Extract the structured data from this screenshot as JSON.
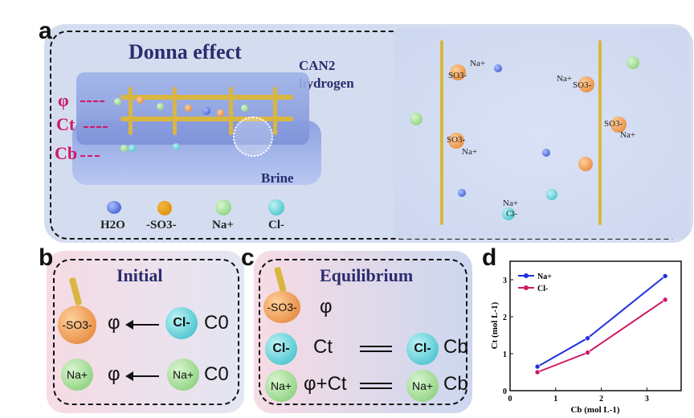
{
  "panel_labels": {
    "a": "a",
    "b": "b",
    "c": "c",
    "d": "d"
  },
  "panel_a": {
    "title": "Donna effect",
    "material_line1": "CAN2",
    "material_line2": "hydrogen",
    "brine": "Brine",
    "left_labels": {
      "phi": "φ",
      "ct": "Ct",
      "cb": "Cb"
    },
    "legend": [
      {
        "label": "H2O",
        "icon": "water-molecule"
      },
      {
        "label": "-SO3-",
        "icon": "orange-sphere"
      },
      {
        "label": "Na+",
        "icon": "green-sphere"
      },
      {
        "label": "Cl-",
        "icon": "cyan-sphere"
      }
    ],
    "inset_ions": [
      "Na+",
      "SO3-",
      "Na+",
      "SO3-",
      "SO3-",
      "Na+",
      "SO3-",
      "Na+",
      "Na+",
      "Cl-"
    ]
  },
  "panel_b": {
    "title": "Initial",
    "row1": {
      "left": "-SO3-",
      "mid": "φ",
      "right": "Cl-",
      "conc": "C0"
    },
    "row2": {
      "left": "Na+",
      "mid": "φ",
      "right": "Na+",
      "conc": "C0"
    }
  },
  "panel_c": {
    "title": "Equilibrium",
    "row1": {
      "left": "-SO3-",
      "mid": "φ"
    },
    "row2": {
      "left": "Cl-",
      "mid": "Ct",
      "right": "Cl-",
      "conc": "Cb"
    },
    "row3": {
      "left": "Na+",
      "mid": "φ+Ct",
      "right": "Na+",
      "conc": "Cb"
    }
  },
  "chart_data": {
    "type": "line",
    "xlabel": "Cb (mol L-1)",
    "ylabel": "Ct (mol L-1)",
    "xlim": [
      0,
      3.75
    ],
    "ylim": [
      0,
      3.5
    ],
    "xticks": [
      "0",
      "1",
      "2",
      "3"
    ],
    "yticks": [
      "0",
      "1",
      "2",
      "3"
    ],
    "grid": false,
    "legend_position": "top-left",
    "series": [
      {
        "name": "Na+",
        "color": "#1f2fe0",
        "x": [
          0.6,
          1.7,
          3.4
        ],
        "y": [
          0.65,
          1.42,
          3.1
        ]
      },
      {
        "name": "Cl-",
        "color": "#d01968",
        "x": [
          0.6,
          1.7,
          3.4
        ],
        "y": [
          0.5,
          1.03,
          2.46
        ]
      }
    ]
  }
}
